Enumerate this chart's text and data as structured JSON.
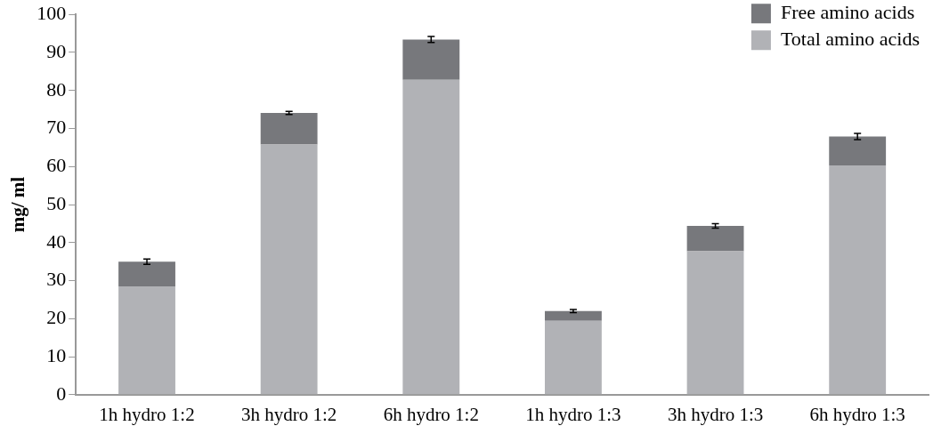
{
  "chart_data": {
    "type": "bar",
    "stacked": true,
    "ylabel": "mg/ ml",
    "categories": [
      "1h hydro 1:2",
      "3h hydro 1:2",
      "6h hydro 1:2",
      "1h hydro 1:3",
      "3h hydro 1:3",
      "6h hydro 1:3"
    ],
    "series": [
      {
        "name": "Total amino acids",
        "color": "#b1b2b6",
        "values": [
          28.5,
          65.8,
          82.8,
          19.4,
          37.7,
          60.3
        ]
      },
      {
        "name": "Free amino acids",
        "color": "#77787c",
        "values": [
          6.5,
          8.3,
          10.6,
          2.6,
          6.7,
          7.6
        ],
        "errors": [
          0.7,
          0.4,
          0.8,
          0.4,
          0.6,
          0.8
        ]
      }
    ],
    "ylim": [
      0,
      100
    ],
    "yticks": [
      0,
      10,
      20,
      30,
      40,
      50,
      60,
      70,
      80,
      90,
      100
    ],
    "grid": false,
    "legend": "top right"
  }
}
